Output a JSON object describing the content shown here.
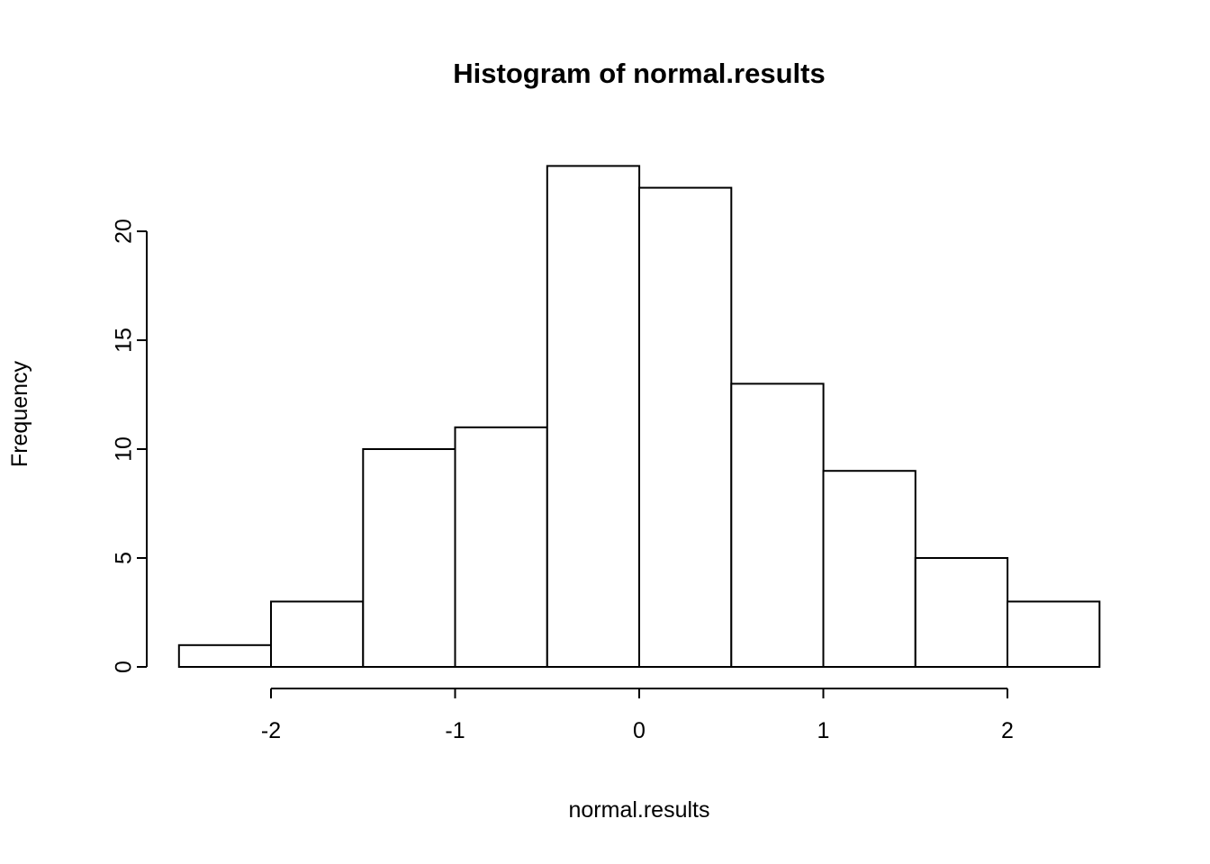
{
  "chart_data": {
    "type": "bar",
    "subtype": "histogram",
    "title": "Histogram of normal.results",
    "xlabel": "normal.results",
    "ylabel": "Frequency",
    "bin_edges": [
      -2.5,
      -2,
      -1.5,
      -1,
      -0.5,
      0,
      0.5,
      1,
      1.5,
      2,
      2.5
    ],
    "values": [
      1,
      3,
      10,
      11,
      23,
      22,
      13,
      9,
      5,
      3
    ],
    "xticks": [
      -2,
      -1,
      0,
      1,
      2
    ],
    "yticks": [
      0,
      5,
      10,
      15,
      20
    ],
    "xlim": [
      -2.5,
      2.5
    ],
    "ylim": [
      0,
      23
    ],
    "grid": false,
    "legend": "none",
    "bar_fill": "#ffffff",
    "bar_stroke": "#000000",
    "axis_color": "#000000",
    "background": "#ffffff"
  }
}
